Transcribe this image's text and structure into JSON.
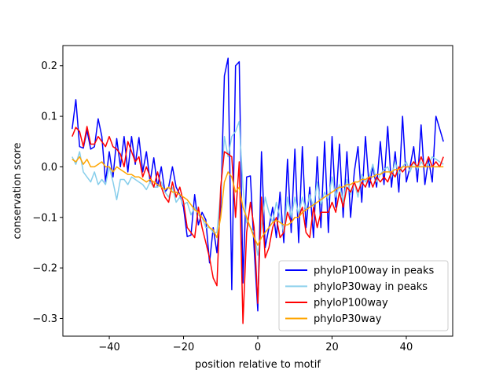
{
  "chart_data": {
    "type": "line",
    "xlabel": "position relative to motif",
    "ylabel": "conservation score",
    "xlim": [
      -52.5,
      52.5
    ],
    "ylim": [
      -0.335,
      0.24
    ],
    "xticks": [
      -40,
      -20,
      0,
      20,
      40
    ],
    "xtick_labels": [
      "−40",
      "−20",
      "0",
      "20",
      "40"
    ],
    "yticks": [
      0.2,
      0.1,
      0.0,
      -0.1,
      -0.2,
      -0.3
    ],
    "ytick_labels": [
      "0.2",
      "0.1",
      "0.0",
      "−0.1",
      "−0.2",
      "−0.3"
    ],
    "grid": false,
    "legend_position": "lower-right",
    "x": [
      -50,
      -49,
      -48,
      -47,
      -46,
      -45,
      -44,
      -43,
      -42,
      -41,
      -40,
      -39,
      -38,
      -37,
      -36,
      -35,
      -34,
      -33,
      -32,
      -31,
      -30,
      -29,
      -28,
      -27,
      -26,
      -25,
      -24,
      -23,
      -22,
      -21,
      -20,
      -19,
      -18,
      -17,
      -16,
      -15,
      -14,
      -13,
      -12,
      -11,
      -10,
      -9,
      -8,
      -7,
      -6,
      -5,
      -4,
      -3,
      -2,
      -1,
      0,
      1,
      2,
      3,
      4,
      5,
      6,
      7,
      8,
      9,
      10,
      11,
      12,
      13,
      14,
      15,
      16,
      17,
      18,
      19,
      20,
      21,
      22,
      23,
      24,
      25,
      26,
      27,
      28,
      29,
      30,
      31,
      32,
      33,
      34,
      35,
      36,
      37,
      38,
      39,
      40,
      41,
      42,
      43,
      44,
      45,
      46,
      47,
      48,
      49,
      50
    ],
    "series": [
      {
        "name": "phyloP100way in peaks",
        "color": "#0000ff",
        "values": [
          0.075,
          0.133,
          0.04,
          0.037,
          0.072,
          0.035,
          0.04,
          0.095,
          0.06,
          -0.03,
          0.03,
          -0.02,
          0.056,
          0.0,
          0.06,
          -0.01,
          0.06,
          0.005,
          0.058,
          -0.01,
          0.03,
          -0.03,
          0.018,
          -0.04,
          0.0,
          -0.05,
          -0.04,
          0.0,
          -0.04,
          -0.055,
          -0.08,
          -0.138,
          -0.135,
          -0.055,
          -0.115,
          -0.09,
          -0.105,
          -0.19,
          -0.12,
          -0.17,
          -0.08,
          0.18,
          0.215,
          -0.243,
          0.2,
          0.208,
          -0.23,
          -0.02,
          -0.018,
          -0.16,
          -0.285,
          0.03,
          -0.16,
          -0.12,
          -0.08,
          -0.14,
          -0.05,
          -0.15,
          0.015,
          -0.13,
          0.035,
          -0.15,
          0.04,
          -0.12,
          -0.04,
          -0.14,
          0.02,
          -0.12,
          0.05,
          -0.13,
          0.06,
          -0.08,
          0.045,
          -0.1,
          0.03,
          -0.1,
          -0.01,
          0.04,
          -0.07,
          0.06,
          -0.04,
          0.0,
          -0.04,
          0.05,
          -0.035,
          0.08,
          -0.04,
          0.03,
          -0.05,
          0.1,
          -0.03,
          0.0,
          0.04,
          -0.03,
          0.083,
          -0.035,
          0.015,
          -0.03,
          0.1,
          0.075,
          0.05
        ]
      },
      {
        "name": "phyloP30way in peaks",
        "color": "#87ceeb",
        "values": [
          0.02,
          0.005,
          0.03,
          -0.01,
          -0.02,
          -0.03,
          -0.01,
          -0.035,
          -0.025,
          -0.035,
          0.0,
          -0.03,
          -0.065,
          -0.025,
          -0.025,
          -0.035,
          -0.02,
          -0.025,
          -0.03,
          -0.035,
          -0.045,
          -0.03,
          -0.04,
          -0.04,
          -0.03,
          -0.05,
          -0.06,
          -0.04,
          -0.07,
          -0.06,
          -0.075,
          -0.07,
          -0.095,
          -0.08,
          -0.095,
          -0.1,
          -0.12,
          -0.12,
          -0.13,
          -0.13,
          -0.05,
          0.06,
          0.02,
          0.06,
          0.07,
          0.09,
          -0.04,
          -0.11,
          -0.12,
          -0.13,
          -0.175,
          -0.12,
          -0.06,
          -0.09,
          -0.11,
          -0.07,
          -0.1,
          -0.13,
          -0.06,
          -0.1,
          -0.06,
          -0.095,
          -0.06,
          -0.085,
          -0.055,
          -0.08,
          -0.03,
          -0.075,
          -0.05,
          -0.065,
          -0.02,
          -0.06,
          -0.035,
          -0.07,
          -0.025,
          -0.055,
          -0.03,
          -0.06,
          -0.015,
          -0.03,
          -0.02,
          0.005,
          -0.03,
          -0.015,
          -0.005,
          0.0,
          -0.02,
          0.01,
          -0.015,
          0.0,
          0.01,
          -0.01,
          0.01,
          -0.005,
          0.01,
          0.0,
          0.005,
          0.02,
          0.015,
          0.01,
          0.005
        ]
      },
      {
        "name": "phyloP100way",
        "color": "#ff0000",
        "values": [
          0.06,
          0.078,
          0.07,
          0.04,
          0.08,
          0.045,
          0.045,
          0.06,
          0.05,
          0.04,
          0.06,
          0.04,
          0.035,
          0.025,
          0.0,
          0.05,
          0.03,
          0.01,
          0.02,
          -0.02,
          0.0,
          -0.02,
          -0.04,
          -0.01,
          -0.04,
          -0.06,
          -0.07,
          -0.03,
          -0.06,
          -0.04,
          -0.07,
          -0.12,
          -0.13,
          -0.14,
          -0.08,
          -0.12,
          -0.15,
          -0.18,
          -0.22,
          -0.235,
          -0.04,
          0.03,
          0.025,
          0.02,
          -0.1,
          0.01,
          -0.31,
          -0.13,
          -0.07,
          -0.12,
          -0.27,
          -0.06,
          -0.18,
          -0.16,
          -0.12,
          -0.1,
          -0.14,
          -0.13,
          -0.09,
          -0.11,
          -0.1,
          -0.1,
          -0.08,
          -0.13,
          -0.14,
          -0.08,
          -0.12,
          -0.09,
          -0.09,
          -0.09,
          -0.07,
          -0.09,
          -0.05,
          -0.08,
          -0.04,
          -0.05,
          -0.03,
          -0.05,
          -0.03,
          -0.04,
          -0.02,
          -0.04,
          -0.02,
          -0.03,
          -0.02,
          -0.03,
          -0.01,
          -0.02,
          0.0,
          -0.01,
          0.0,
          0.0,
          0.01,
          0.0,
          0.02,
          0.0,
          0.02,
          0.0,
          0.01,
          0.0,
          0.02
        ]
      },
      {
        "name": "phyloP30way",
        "color": "#ffa500",
        "values": [
          0.015,
          0.01,
          0.02,
          0.005,
          0.015,
          0.0,
          0.0,
          0.005,
          0.01,
          0.0,
          0.0,
          -0.01,
          0.0,
          -0.005,
          -0.01,
          -0.015,
          -0.015,
          -0.02,
          -0.02,
          -0.025,
          -0.03,
          -0.025,
          -0.03,
          -0.035,
          -0.04,
          -0.045,
          -0.04,
          -0.05,
          -0.05,
          -0.055,
          -0.06,
          -0.065,
          -0.075,
          -0.085,
          -0.09,
          -0.1,
          -0.11,
          -0.12,
          -0.125,
          -0.14,
          -0.1,
          -0.03,
          -0.01,
          -0.02,
          -0.05,
          -0.04,
          -0.08,
          -0.1,
          -0.12,
          -0.14,
          -0.155,
          -0.14,
          -0.13,
          -0.12,
          -0.11,
          -0.105,
          -0.11,
          -0.115,
          -0.115,
          -0.11,
          -0.1,
          -0.1,
          -0.09,
          -0.085,
          -0.08,
          -0.075,
          -0.07,
          -0.065,
          -0.06,
          -0.055,
          -0.05,
          -0.045,
          -0.04,
          -0.04,
          -0.035,
          -0.035,
          -0.03,
          -0.03,
          -0.025,
          -0.025,
          -0.02,
          -0.02,
          -0.015,
          -0.015,
          -0.01,
          -0.01,
          -0.01,
          -0.005,
          -0.005,
          0.0,
          0.0,
          0.0,
          0.0,
          0.0,
          0.0,
          0.0,
          0.0,
          0.0,
          0.0,
          0.0,
          0.0
        ]
      }
    ]
  }
}
